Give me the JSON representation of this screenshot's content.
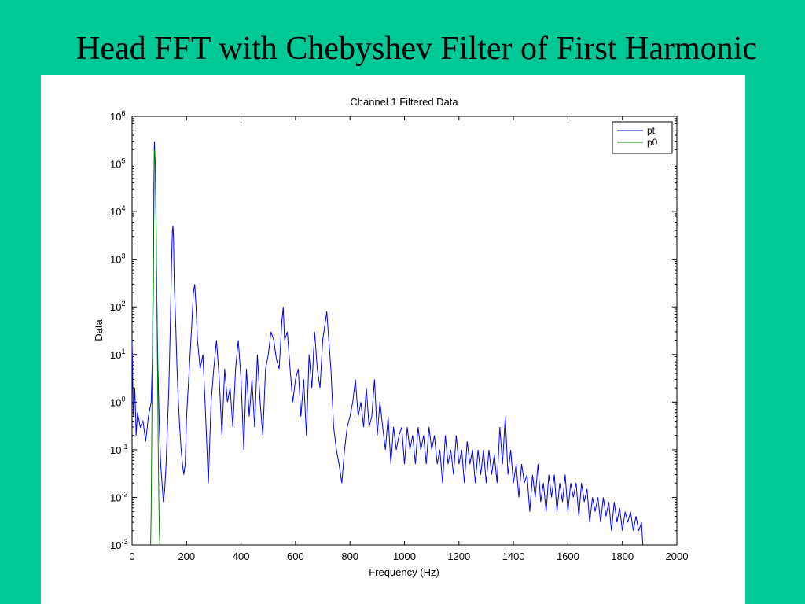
{
  "slide": {
    "title": "Head FFT with Chebyshev Filter of First Harmonic",
    "background_color": "#00c896"
  },
  "chart_data": {
    "type": "line",
    "title": "Channel 1 Filtered Data",
    "xlabel": "Frequency (Hz)",
    "ylabel": "Data",
    "xlim": [
      0,
      2000
    ],
    "ylim": [
      0.001,
      1000000
    ],
    "yscale": "log",
    "grid": false,
    "legend_position": "top-right",
    "x_ticks": [
      "0",
      "200",
      "400",
      "600",
      "800",
      "1000",
      "1200",
      "1400",
      "1600",
      "1800",
      "2000"
    ],
    "y_ticks": [
      {
        "base": "10",
        "exp": "-3"
      },
      {
        "base": "10",
        "exp": "-2"
      },
      {
        "base": "10",
        "exp": "-1"
      },
      {
        "base": "10",
        "exp": "0"
      },
      {
        "base": "10",
        "exp": "1"
      },
      {
        "base": "10",
        "exp": "2"
      },
      {
        "base": "10",
        "exp": "3"
      },
      {
        "base": "10",
        "exp": "4"
      },
      {
        "base": "10",
        "exp": "5"
      },
      {
        "base": "10",
        "exp": "6"
      }
    ],
    "series": [
      {
        "name": "pt",
        "color": "#0000ff",
        "x": [
          0,
          5,
          10,
          15,
          20,
          30,
          40,
          50,
          60,
          70,
          75,
          78,
          80,
          82,
          85,
          88,
          90,
          95,
          100,
          105,
          110,
          115,
          120,
          125,
          130,
          135,
          140,
          145,
          148,
          150,
          152,
          155,
          160,
          165,
          170,
          175,
          180,
          185,
          190,
          195,
          200,
          210,
          220,
          225,
          230,
          235,
          240,
          250,
          260,
          270,
          280,
          290,
          300,
          310,
          320,
          330,
          340,
          350,
          360,
          370,
          380,
          390,
          400,
          410,
          420,
          430,
          440,
          450,
          460,
          470,
          480,
          490,
          500,
          510,
          520,
          530,
          540,
          550,
          555,
          560,
          570,
          580,
          590,
          600,
          610,
          620,
          630,
          640,
          650,
          660,
          670,
          680,
          690,
          700,
          710,
          715,
          720,
          730,
          740,
          750,
          760,
          770,
          780,
          790,
          800,
          810,
          820,
          830,
          840,
          850,
          860,
          870,
          880,
          890,
          900,
          910,
          920,
          930,
          940,
          950,
          960,
          970,
          980,
          990,
          1000,
          1010,
          1020,
          1030,
          1040,
          1050,
          1060,
          1070,
          1080,
          1090,
          1100,
          1110,
          1120,
          1130,
          1140,
          1150,
          1160,
          1170,
          1180,
          1190,
          1200,
          1210,
          1220,
          1230,
          1240,
          1250,
          1260,
          1270,
          1280,
          1290,
          1300,
          1310,
          1320,
          1330,
          1340,
          1350,
          1360,
          1370,
          1380,
          1390,
          1400,
          1410,
          1420,
          1430,
          1440,
          1450,
          1460,
          1470,
          1480,
          1490,
          1500,
          1510,
          1520,
          1530,
          1540,
          1550,
          1560,
          1570,
          1580,
          1590,
          1600,
          1610,
          1620,
          1630,
          1640,
          1650,
          1660,
          1670,
          1680,
          1690,
          1700,
          1710,
          1720,
          1730,
          1740,
          1750,
          1760,
          1770,
          1780,
          1790,
          1800,
          1810,
          1820,
          1830,
          1840,
          1850,
          1860,
          1870,
          1875
        ],
        "y": [
          20,
          0.5,
          2,
          0.2,
          0.6,
          0.3,
          0.4,
          0.15,
          0.5,
          1,
          10,
          200,
          10000,
          300000,
          100000,
          10000,
          300,
          5,
          0.3,
          0.05,
          0.02,
          0.008,
          0.015,
          0.05,
          0.3,
          2,
          30,
          800,
          4000,
          5000,
          3000,
          300,
          50,
          5,
          1,
          0.3,
          0.1,
          0.05,
          0.03,
          0.05,
          0.5,
          5,
          50,
          200,
          300,
          100,
          20,
          5,
          10,
          0.5,
          0.02,
          1,
          5,
          20,
          3,
          0.2,
          5,
          1,
          2,
          0.3,
          5,
          20,
          3,
          0.1,
          5,
          0.5,
          3,
          0.3,
          10,
          1,
          0.2,
          5,
          10,
          30,
          20,
          8,
          5,
          50,
          100,
          20,
          30,
          5,
          1,
          3,
          5,
          0.5,
          3,
          0.2,
          10,
          2,
          30,
          5,
          2,
          20,
          50,
          80,
          30,
          5,
          0.3,
          0.1,
          0.05,
          0.02,
          0.1,
          0.3,
          0.5,
          1,
          3,
          0.5,
          1,
          0.3,
          2,
          0.3,
          0.5,
          3,
          0.2,
          1,
          0.3,
          0.1,
          0.5,
          0.05,
          0.3,
          0.1,
          0.2,
          0.3,
          0.05,
          0.3,
          0.1,
          0.2,
          0.05,
          0.3,
          0.1,
          0.2,
          0.05,
          0.3,
          0.1,
          0.2,
          0.05,
          0.1,
          0.02,
          0.2,
          0.05,
          0.1,
          0.03,
          0.2,
          0.05,
          0.1,
          0.02,
          0.15,
          0.05,
          0.1,
          0.02,
          0.1,
          0.03,
          0.1,
          0.02,
          0.1,
          0.03,
          0.08,
          0.02,
          0.3,
          0.05,
          0.5,
          0.03,
          0.1,
          0.02,
          0.05,
          0.01,
          0.05,
          0.02,
          0.03,
          0.005,
          0.03,
          0.01,
          0.05,
          0.008,
          0.02,
          0.005,
          0.03,
          0.01,
          0.03,
          0.005,
          0.02,
          0.008,
          0.03,
          0.005,
          0.02,
          0.01,
          0.02,
          0.004,
          0.02,
          0.008,
          0.015,
          0.003,
          0.01,
          0.005,
          0.01,
          0.003,
          0.01,
          0.004,
          0.008,
          0.002,
          0.008,
          0.003,
          0.006,
          0.002,
          0.005,
          0.003,
          0.005,
          0.002,
          0.004,
          0.002,
          0.003,
          0.001
        ]
      },
      {
        "name": "p0",
        "color": "#008000",
        "x": [
          68,
          70,
          72,
          74,
          76,
          78,
          80,
          82,
          84,
          86,
          88,
          90,
          92,
          94,
          96,
          98,
          100,
          102
        ],
        "y": [
          0.001,
          0.005,
          0.1,
          3,
          100,
          2000,
          50000,
          200000,
          150000,
          30000,
          5000,
          500,
          30,
          2,
          0.1,
          0.01,
          0.002,
          0.001
        ]
      }
    ]
  }
}
